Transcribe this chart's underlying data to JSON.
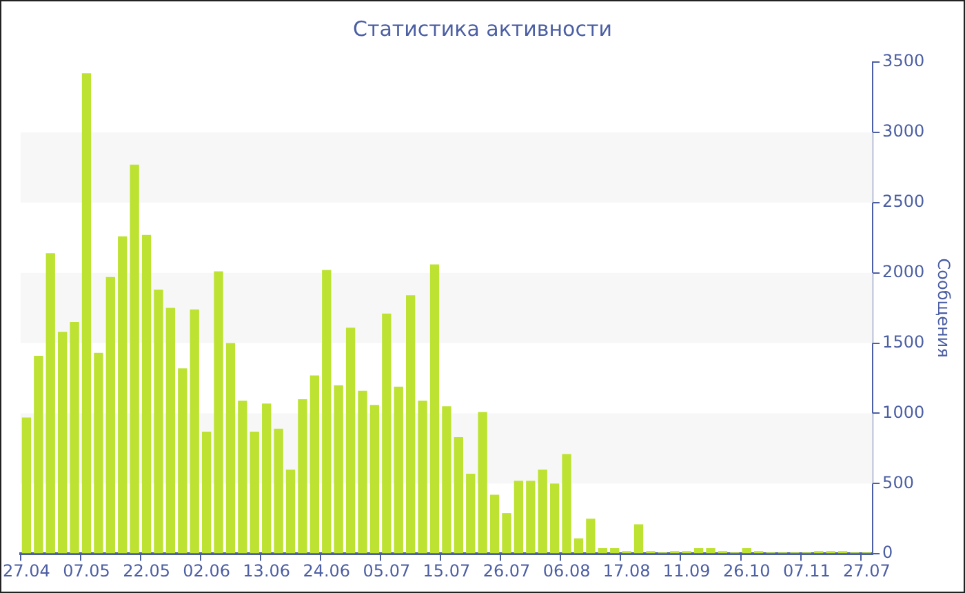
{
  "chart_data": {
    "type": "bar",
    "title": "Статистика активности",
    "ylabel": "Сообщения",
    "categories": [
      "27.04",
      null,
      null,
      null,
      null,
      "07.05",
      null,
      null,
      null,
      null,
      "22.05",
      null,
      null,
      null,
      null,
      "02.06",
      null,
      null,
      null,
      null,
      "13.06",
      null,
      null,
      null,
      null,
      "24.06",
      null,
      null,
      null,
      null,
      "05.07",
      null,
      null,
      null,
      null,
      "15.07",
      null,
      null,
      null,
      null,
      "26.07",
      null,
      null,
      null,
      null,
      "06.08",
      null,
      null,
      null,
      null,
      "17.08",
      null,
      null,
      null,
      null,
      "11.09",
      null,
      null,
      null,
      null,
      "26.10",
      null,
      null,
      null,
      null,
      "07.11",
      null,
      null,
      null,
      null,
      "27.07"
    ],
    "values": [
      970,
      1410,
      2140,
      1580,
      1650,
      3420,
      1430,
      1970,
      2260,
      2770,
      2270,
      1880,
      1750,
      1320,
      1740,
      870,
      2010,
      1500,
      1090,
      870,
      1070,
      890,
      600,
      1100,
      1270,
      2020,
      1200,
      1610,
      1160,
      1060,
      1710,
      1190,
      1840,
      1090,
      2060,
      1050,
      830,
      570,
      1010,
      420,
      290,
      520,
      520,
      600,
      500,
      710,
      110,
      250,
      40,
      40,
      20,
      210,
      20,
      10,
      20,
      20,
      40,
      40,
      20,
      10,
      40,
      20,
      10,
      10,
      10,
      10,
      20,
      20,
      20,
      10,
      10
    ],
    "color": "#bde232",
    "ylim": [
      0,
      3500
    ],
    "yticks": [
      0,
      500,
      1000,
      1500,
      2000,
      2500,
      3000,
      3500
    ],
    "bands": [
      {
        "axis": "y",
        "from": 500,
        "to": 1000,
        "color": "#f7f7f7"
      },
      {
        "axis": "y",
        "from": 1500,
        "to": 2000,
        "color": "#f7f7f7"
      },
      {
        "axis": "y",
        "from": 2500,
        "to": 3000,
        "color": "#f7f7f7"
      }
    ]
  }
}
